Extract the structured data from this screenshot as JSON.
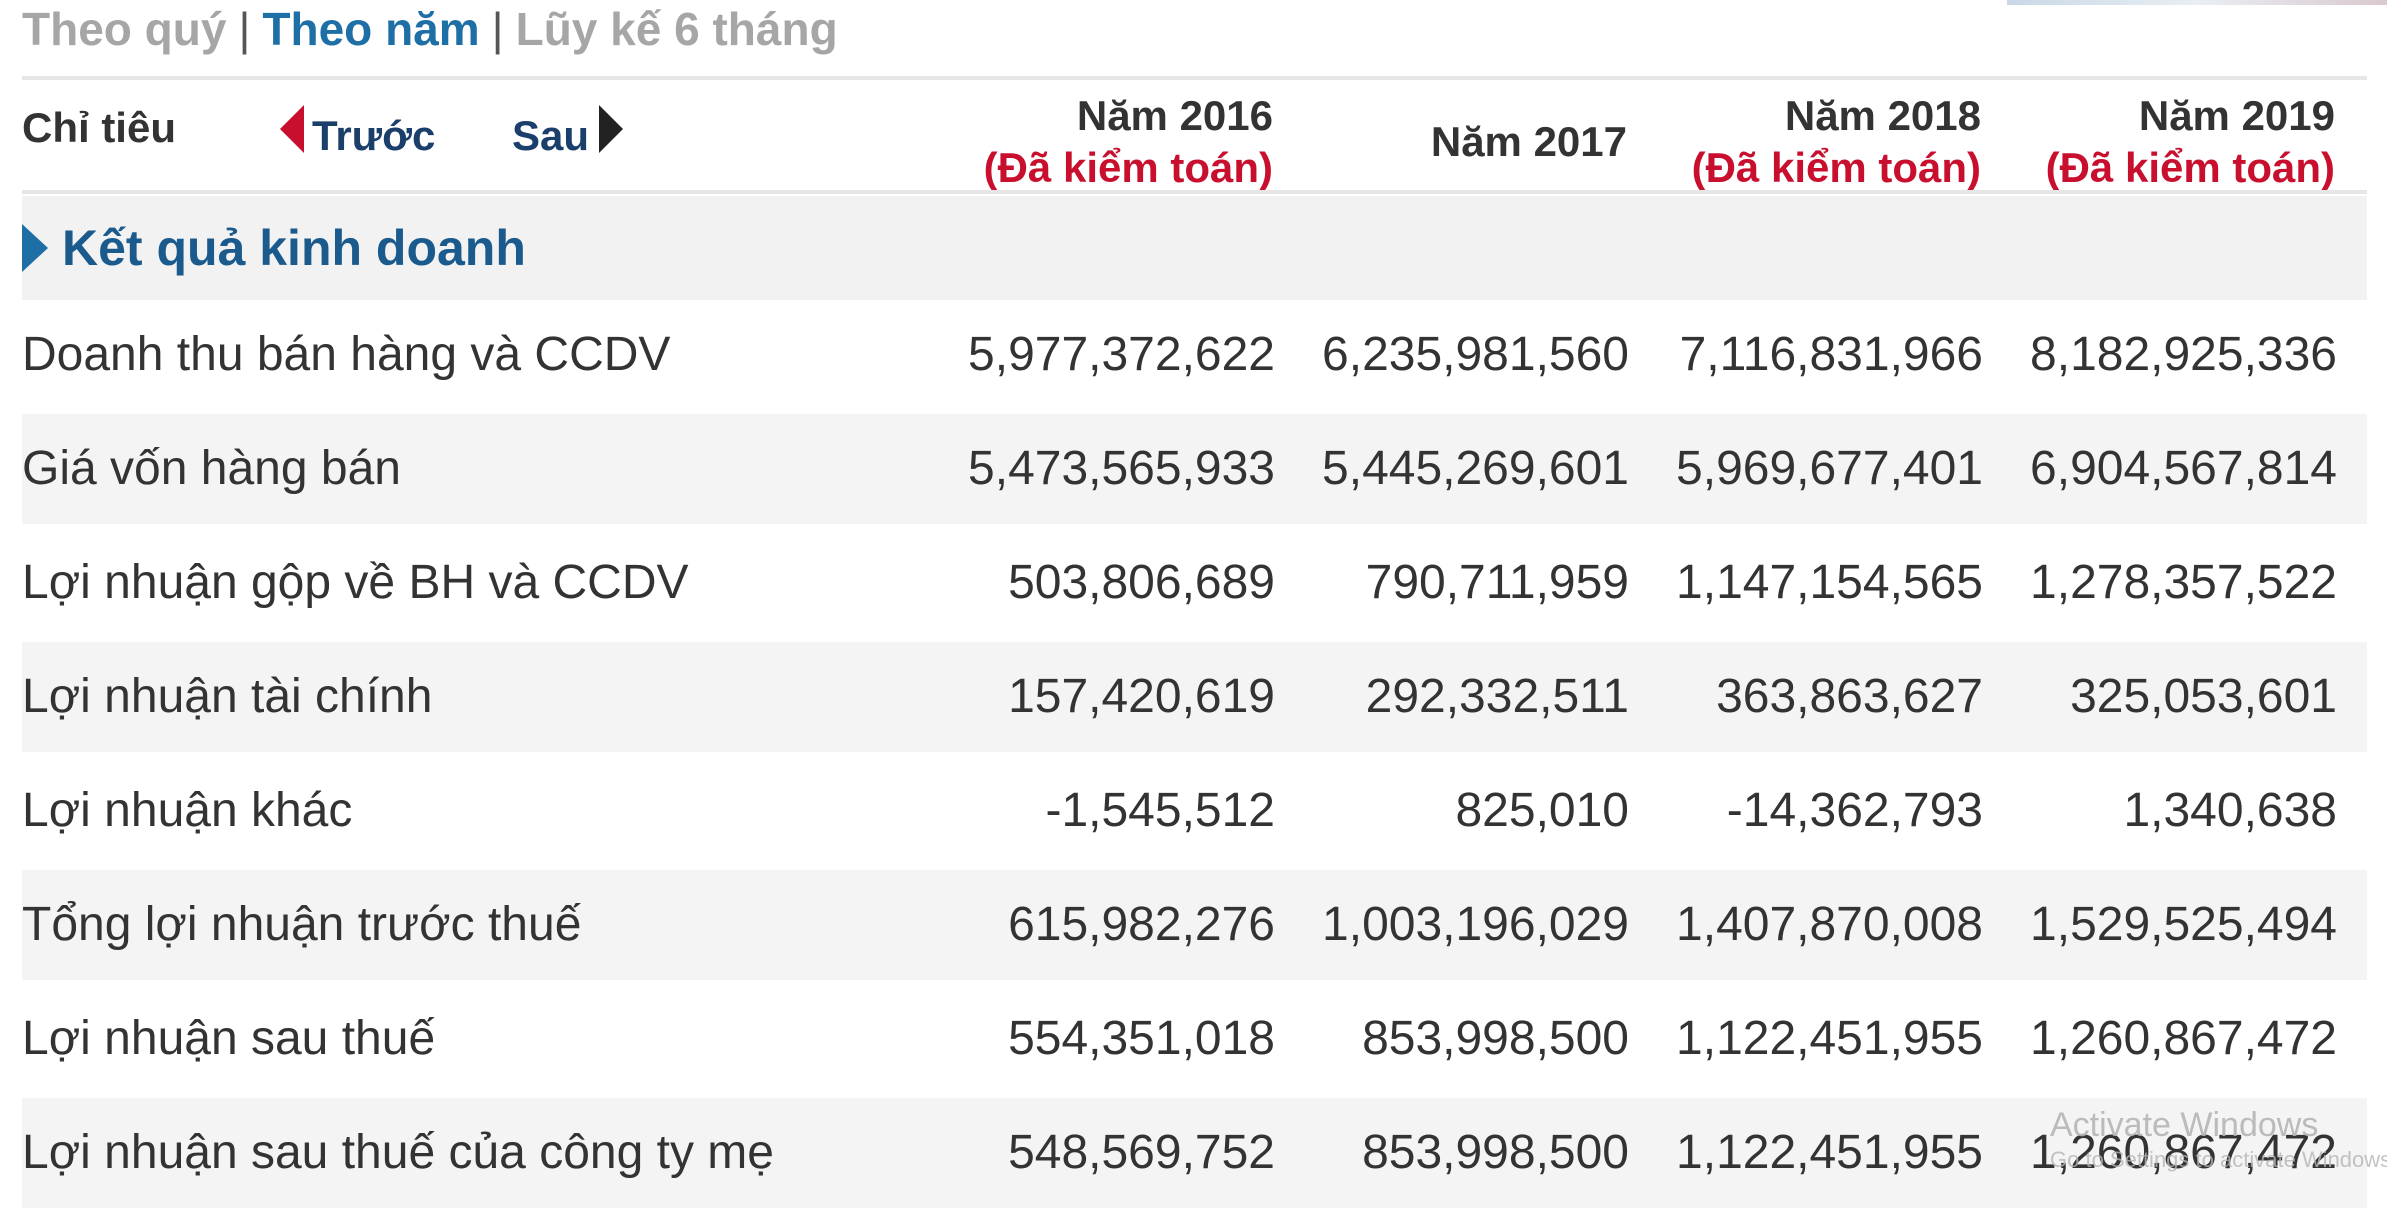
{
  "tabs": {
    "quarter": "Theo quý",
    "year": "Theo năm",
    "cumulative": "Lũy kế 6 tháng",
    "separator": "|"
  },
  "header": {
    "label": "Chỉ tiêu",
    "prev": "Trước",
    "next": "Sau",
    "columns": [
      {
        "year": "Năm 2016",
        "note": "(Đã kiểm toán)"
      },
      {
        "year": "Năm 2017",
        "note": ""
      },
      {
        "year": "Năm 2018",
        "note": "(Đã kiểm toán)"
      },
      {
        "year": "Năm 2019",
        "note": "(Đã kiểm toán)"
      }
    ]
  },
  "section": {
    "title": "Kết quả kinh doanh"
  },
  "rows": [
    {
      "label": "Doanh thu bán hàng và CCDV",
      "values": [
        "5,977,372,622",
        "6,235,981,560",
        "7,116,831,966",
        "8,182,925,336"
      ]
    },
    {
      "label": "Giá vốn hàng bán",
      "values": [
        "5,473,565,933",
        "5,445,269,601",
        "5,969,677,401",
        "6,904,567,814"
      ]
    },
    {
      "label": "Lợi nhuận gộp về BH và CCDV",
      "values": [
        "503,806,689",
        "790,711,959",
        "1,147,154,565",
        "1,278,357,522"
      ]
    },
    {
      "label": "Lợi nhuận tài chính",
      "values": [
        "157,420,619",
        "292,332,511",
        "363,863,627",
        "325,053,601"
      ]
    },
    {
      "label": "Lợi nhuận khác",
      "values": [
        "-1,545,512",
        "825,010",
        "-14,362,793",
        "1,340,638"
      ]
    },
    {
      "label": "Tổng lợi nhuận trước thuế",
      "values": [
        "615,982,276",
        "1,003,196,029",
        "1,407,870,008",
        "1,529,525,494"
      ]
    },
    {
      "label": "Lợi nhuận sau thuế",
      "values": [
        "554,351,018",
        "853,998,500",
        "1,122,451,955",
        "1,260,867,472"
      ]
    },
    {
      "label": "Lợi nhuận sau thuế của công ty mẹ",
      "values": [
        "548,569,752",
        "853,998,500",
        "1,122,451,955",
        "1,260,867,472"
      ]
    }
  ],
  "watermark": {
    "title": "Activate Windows",
    "subtitle": "Go to Settings to activate Windows."
  },
  "colors": {
    "accent_blue": "#1d6fa5",
    "audited_red": "#c8102e",
    "inactive_tab": "#a6a6a6"
  }
}
